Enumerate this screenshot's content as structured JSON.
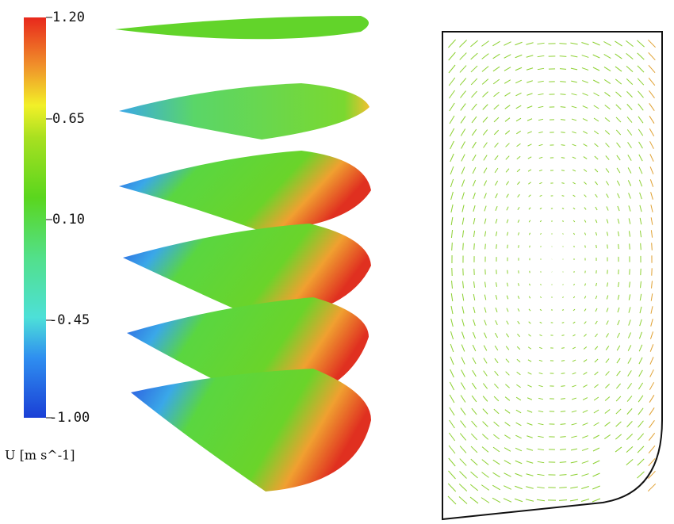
{
  "colorbar": {
    "ticks": [
      "1.20",
      "0.65",
      "0.10",
      "-0.45",
      "-1.00"
    ],
    "label": "U [m s^-1]"
  }
}
